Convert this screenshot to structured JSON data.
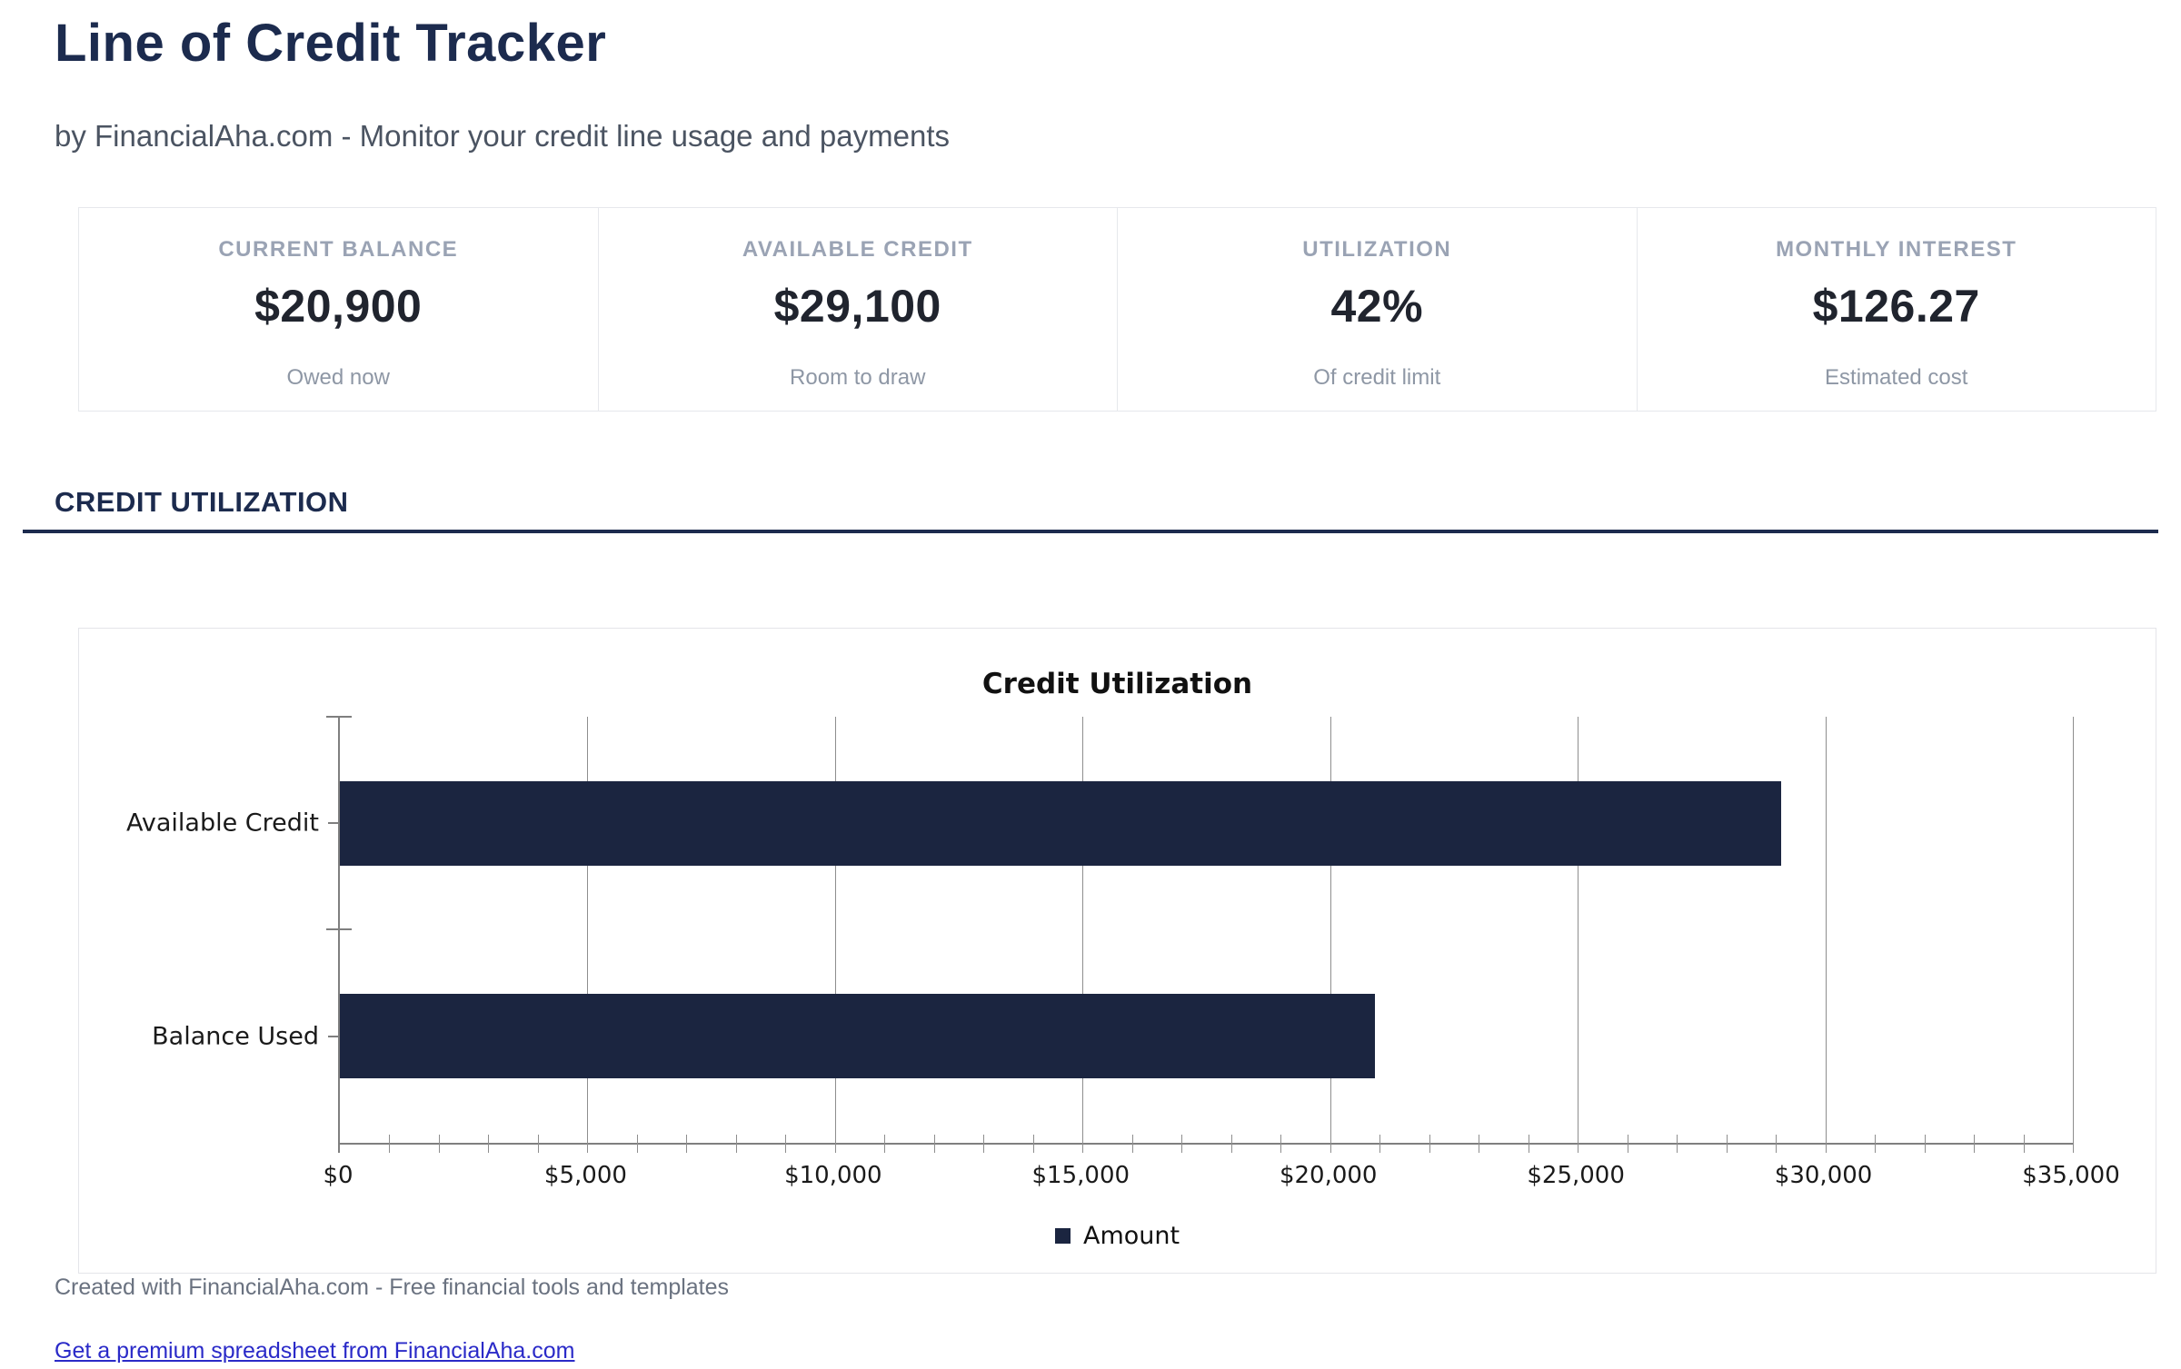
{
  "header": {
    "title": "Line of Credit Tracker",
    "subtitle": "by FinancialAha.com - Monitor your credit line usage and payments"
  },
  "stats": {
    "cards": [
      {
        "label": "CURRENT BALANCE",
        "value": "$20,900",
        "caption": "Owed now"
      },
      {
        "label": "AVAILABLE CREDIT",
        "value": "$29,100",
        "caption": "Room to draw"
      },
      {
        "label": "UTILIZATION",
        "value": "42%",
        "caption": "Of credit limit"
      },
      {
        "label": "MONTHLY INTEREST",
        "value": "$126.27",
        "caption": "Estimated cost"
      }
    ]
  },
  "section": {
    "title": "CREDIT UTILIZATION"
  },
  "chart_data": {
    "type": "bar",
    "orientation": "horizontal",
    "title": "Credit Utilization",
    "categories": [
      "Available Credit",
      "Balance Used"
    ],
    "series": [
      {
        "name": "Amount",
        "values": [
          29100,
          20900
        ]
      }
    ],
    "xlabel": "",
    "ylabel": "",
    "xlim": [
      0,
      35000
    ],
    "x_major_unit": 5000,
    "x_minor_unit": 1000,
    "x_tick_labels": [
      "$0",
      "$5,000",
      "$10,000",
      "$15,000",
      "$20,000",
      "$25,000",
      "$30,000",
      "$35,000"
    ],
    "grid": true,
    "legend": [
      "Amount"
    ],
    "legend_position": "bottom",
    "bar_color": "#1b2540"
  },
  "footer": {
    "credit_line": "Created with FinancialAha.com - Free financial tools and templates",
    "link_text": "Get a premium spreadsheet from FinancialAha.com"
  },
  "colors": {
    "accent_navy": "#1c2b4e",
    "bar_navy": "#1b2540",
    "link_blue": "#2a2ac8"
  }
}
